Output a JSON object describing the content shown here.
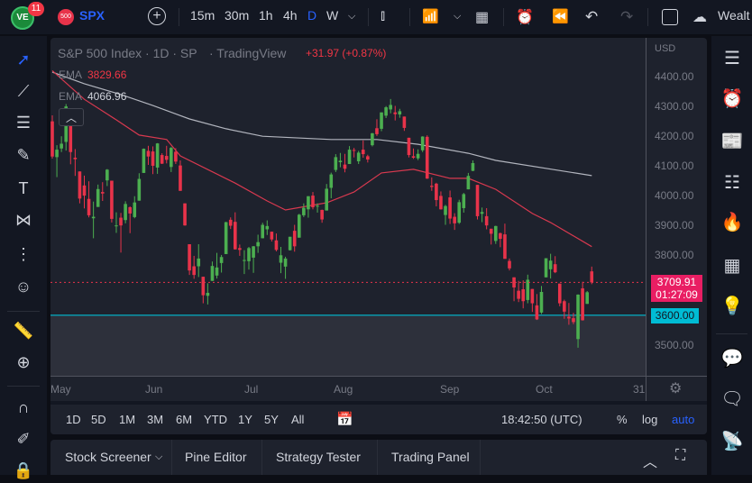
{
  "topbar": {
    "badge": "11",
    "symbol_badge": "500",
    "symbol": "SPX",
    "intervals": [
      "15m",
      "30m",
      "1h",
      "4h",
      "D",
      "W"
    ],
    "active_interval": "D",
    "workspace": "Wealt"
  },
  "legend": {
    "title": "S&P 500 Index · 1D · SP",
    "source": "· TradingView",
    "change": "+31.97 (+0.87%)",
    "ema1_label": "EMA",
    "ema1_value": "3829.66",
    "ema2_label": "EMA",
    "ema2_value": "4066.96"
  },
  "price_axis": {
    "currency": "USD",
    "ticks": [
      "4400.00",
      "4300.00",
      "4200.00",
      "4100.00",
      "4000.00",
      "3900.00",
      "3800.00",
      "3500.00"
    ],
    "last_price": "3709.91",
    "countdown": "01:27:09",
    "level_line": "3600.00"
  },
  "time_axis": [
    "May",
    "Jun",
    "Jul",
    "Aug",
    "Sep",
    "Oct",
    "31"
  ],
  "bottom_toolbar": {
    "ranges": [
      "1D",
      "5D",
      "1M",
      "3M",
      "6M",
      "YTD",
      "1Y",
      "5Y",
      "All"
    ],
    "clock": "18:42:50 (UTC)",
    "percent": "%",
    "log": "log",
    "auto": "auto"
  },
  "panel_tabs": [
    "Stock Screener",
    "Pine Editor",
    "Strategy Tester",
    "Trading Panel"
  ],
  "colors": {
    "up": "#4caf50",
    "down": "#e8334a",
    "ema_fast": "#d8394f",
    "ema_slow": "#b2b5be",
    "level": "#00bcd4",
    "accent": "#2962ff"
  },
  "chart_data": {
    "type": "candlestick",
    "ylim": [
      3450,
      4440
    ],
    "candles": [
      [
        "Apr 29",
        4250,
        4270,
        4125,
        4132
      ],
      [
        "May 2",
        4130,
        4170,
        4063,
        4155
      ],
      [
        "May 3",
        4159,
        4200,
        4147,
        4175
      ],
      [
        "May 4",
        4181,
        4308,
        4152,
        4300
      ],
      [
        "May 5",
        4270,
        4270,
        4106,
        4147
      ],
      [
        "May 6",
        4128,
        4157,
        4067,
        4123
      ],
      [
        "May 9",
        4082,
        4082,
        3975,
        3991
      ],
      [
        "May 10",
        4035,
        4068,
        3958,
        4001
      ],
      [
        "May 11",
        3990,
        4049,
        3928,
        3935
      ],
      [
        "May 12",
        3925,
        3981,
        3858,
        3930
      ],
      [
        "May 13",
        3963,
        4038,
        3963,
        4023
      ],
      [
        "May 16",
        4013,
        4046,
        3983,
        4008
      ],
      [
        "May 17",
        4052,
        4090,
        4033,
        4088
      ],
      [
        "May 18",
        4051,
        4051,
        3911,
        3923
      ],
      [
        "May 19",
        3900,
        3945,
        3876,
        3901
      ],
      [
        "May 20",
        3927,
        3943,
        3810,
        3901
      ],
      [
        "May 23",
        3919,
        3982,
        3908,
        3973
      ],
      [
        "May 24",
        3962,
        3965,
        3875,
        3941
      ],
      [
        "May 25",
        3929,
        3999,
        3925,
        3978
      ],
      [
        "May 26",
        3984,
        4076,
        3984,
        4057
      ],
      [
        "May 27",
        4077,
        4159,
        4077,
        4158
      ],
      [
        "May 31",
        4151,
        4168,
        4104,
        4132
      ],
      [
        "Jun 1",
        4149,
        4166,
        4073,
        4101
      ],
      [
        "Jun 2",
        4095,
        4177,
        4074,
        4176
      ],
      [
        "Jun 3",
        4137,
        4143,
        4107,
        4108
      ],
      [
        "Jun 6",
        4134,
        4168,
        4109,
        4121
      ],
      [
        "Jun 7",
        4097,
        4164,
        4080,
        4161
      ],
      [
        "Jun 8",
        4148,
        4160,
        4107,
        4115
      ],
      [
        "Jun 9",
        4102,
        4119,
        4017,
        4017
      ],
      [
        "Jun 10",
        3975,
        3975,
        3900,
        3901
      ],
      [
        "Jun 13",
        3838,
        3838,
        3735,
        3750
      ],
      [
        "Jun 14",
        3764,
        3799,
        3722,
        3735
      ],
      [
        "Jun 15",
        3764,
        3838,
        3728,
        3790
      ],
      [
        "Jun 16",
        3729,
        3729,
        3640,
        3667
      ],
      [
        "Jun 17",
        3665,
        3707,
        3636,
        3675
      ],
      [
        "Jun 21",
        3715,
        3780,
        3715,
        3765
      ],
      [
        "Jun 22",
        3733,
        3809,
        3723,
        3760
      ],
      [
        "Jun 23",
        3775,
        3802,
        3743,
        3795
      ],
      [
        "Jun 24",
        3805,
        3913,
        3805,
        3912
      ],
      [
        "Jun 27",
        3920,
        3928,
        3889,
        3900
      ],
      [
        "Jun 28",
        3913,
        3945,
        3820,
        3821
      ],
      [
        "Jun 29",
        3825,
        3837,
        3799,
        3819
      ],
      [
        "Jun 30",
        3785,
        3818,
        3738,
        3785
      ],
      [
        "Jul 1",
        3781,
        3829,
        3753,
        3825
      ],
      [
        "Jul 5",
        3793,
        3832,
        3742,
        3831
      ],
      [
        "Jul 6",
        3831,
        3870,
        3809,
        3845
      ],
      [
        "Jul 7",
        3858,
        3910,
        3858,
        3903
      ],
      [
        "Jul 8",
        3888,
        3918,
        3869,
        3899
      ],
      [
        "Jul 11",
        3880,
        3880,
        3847,
        3854
      ],
      [
        "Jul 12",
        3851,
        3874,
        3814,
        3819
      ],
      [
        "Jul 13",
        3776,
        3829,
        3741,
        3801
      ],
      [
        "Jul 14",
        3763,
        3796,
        3722,
        3790
      ],
      [
        "Jul 15",
        3818,
        3863,
        3817,
        3863
      ],
      [
        "Jul 18",
        3883,
        3903,
        3813,
        3831
      ],
      [
        "Jul 19",
        3860,
        3940,
        3860,
        3937
      ],
      [
        "Jul 20",
        3935,
        3975,
        3929,
        3960
      ],
      [
        "Jul 21",
        3955,
        3999,
        3927,
        3999
      ],
      [
        "Jul 22",
        4001,
        4013,
        3955,
        3962
      ],
      [
        "Jul 25",
        3965,
        3975,
        3944,
        3967
      ],
      [
        "Jul 26",
        3953,
        3954,
        3910,
        3921
      ],
      [
        "Jul 27",
        3951,
        4040,
        3951,
        4024
      ],
      [
        "Jul 28",
        4027,
        4078,
        3992,
        4072
      ],
      [
        "Jul 29",
        4087,
        4140,
        4080,
        4130
      ],
      [
        "Aug 1",
        4113,
        4144,
        4096,
        4118
      ],
      [
        "Aug 2",
        4105,
        4141,
        4079,
        4091
      ],
      [
        "Aug 3",
        4107,
        4167,
        4107,
        4155
      ],
      [
        "Aug 4",
        4154,
        4161,
        4129,
        4152
      ],
      [
        "Aug 5",
        4116,
        4151,
        4107,
        4145
      ],
      [
        "Aug 8",
        4155,
        4186,
        4128,
        4140
      ],
      [
        "Aug 9",
        4133,
        4138,
        4112,
        4122
      ],
      [
        "Aug 10",
        4170,
        4211,
        4166,
        4210
      ],
      [
        "Aug 11",
        4227,
        4257,
        4201,
        4207
      ],
      [
        "Aug 12",
        4225,
        4280,
        4217,
        4280
      ],
      [
        "Aug 15",
        4269,
        4301,
        4261,
        4297
      ],
      [
        "Aug 16",
        4290,
        4325,
        4277,
        4305
      ],
      [
        "Aug 17",
        4280,
        4302,
        4253,
        4274
      ],
      [
        "Aug 18",
        4273,
        4292,
        4262,
        4284
      ],
      [
        "Aug 19",
        4266,
        4266,
        4218,
        4228
      ],
      [
        "Aug 22",
        4195,
        4195,
        4129,
        4137
      ],
      [
        "Aug 23",
        4133,
        4159,
        4124,
        4128
      ],
      [
        "Aug 24",
        4126,
        4156,
        4120,
        4141
      ],
      [
        "Aug 25",
        4153,
        4200,
        4147,
        4199
      ],
      [
        "Aug 26",
        4198,
        4203,
        4057,
        4058
      ],
      [
        "Aug 29",
        4034,
        4062,
        4017,
        4030
      ],
      [
        "Aug 30",
        4041,
        4044,
        3965,
        3986
      ],
      [
        "Aug 31",
        4000,
        4015,
        3954,
        3955
      ],
      [
        "Sep 1",
        3936,
        3970,
        3903,
        3966
      ],
      [
        "Sep 2",
        3995,
        4018,
        3906,
        3924
      ],
      [
        "Sep 6",
        3930,
        3942,
        3886,
        3908
      ],
      [
        "Sep 7",
        3910,
        3987,
        3906,
        3979
      ],
      [
        "Sep 8",
        3959,
        4010,
        3944,
        4006
      ],
      [
        "Sep 9",
        4022,
        4077,
        4022,
        4067
      ],
      [
        "Sep 12",
        4084,
        4119,
        4083,
        4110
      ],
      [
        "Sep 13",
        4037,
        4037,
        3921,
        3932
      ],
      [
        "Sep 14",
        3940,
        3961,
        3912,
        3946
      ],
      [
        "Sep 15",
        3932,
        3959,
        3888,
        3901
      ],
      [
        "Sep 16",
        3890,
        3890,
        3837,
        3873
      ],
      [
        "Sep 19",
        3849,
        3900,
        3839,
        3899
      ],
      [
        "Sep 20",
        3875,
        3877,
        3828,
        3856
      ],
      [
        "Sep 21",
        3871,
        3907,
        3789,
        3789
      ],
      [
        "Sep 22",
        3782,
        3790,
        3750,
        3757
      ],
      [
        "Sep 23",
        3727,
        3727,
        3647,
        3693
      ],
      [
        "Sep 26",
        3682,
        3715,
        3644,
        3655
      ],
      [
        "Sep 27",
        3687,
        3717,
        3623,
        3647
      ],
      [
        "Sep 28",
        3651,
        3736,
        3640,
        3719
      ],
      [
        "Sep 29",
        3688,
        3688,
        3611,
        3640
      ],
      [
        "Sep 30",
        3633,
        3671,
        3584,
        3586
      ],
      [
        "Oct 3",
        3609,
        3698,
        3604,
        3678
      ],
      [
        "Oct 4",
        3727,
        3791,
        3727,
        3791
      ],
      [
        "Oct 5",
        3754,
        3806,
        3723,
        3783
      ],
      [
        "Oct 6",
        3771,
        3798,
        3741,
        3744
      ],
      [
        "Oct 7",
        3706,
        3706,
        3630,
        3640
      ],
      [
        "Oct 10",
        3647,
        3652,
        3588,
        3612
      ],
      [
        "Oct 11",
        3595,
        3641,
        3568,
        3589
      ],
      [
        "Oct 12",
        3590,
        3608,
        3570,
        3577
      ],
      [
        "Oct 13",
        3520,
        3670,
        3491,
        3669
      ],
      [
        "Oct 14",
        3690,
        3712,
        3582,
        3583
      ],
      [
        "Oct 17",
        3638,
        3681,
        3638,
        3677
      ],
      [
        "Oct 18",
        3747,
        3763,
        3704,
        3710
      ]
    ],
    "ema_fast": [
      [
        "Apr 29",
        4420
      ],
      [
        "May 10",
        4324
      ],
      [
        "May 19",
        4255
      ],
      [
        "May 26",
        4204
      ],
      [
        "Jun 6",
        4189
      ],
      [
        "Jun 9",
        4134
      ],
      [
        "Jun 28",
        4043
      ],
      [
        "Jul 8",
        3983
      ],
      [
        "Jul 14",
        3953
      ],
      [
        "Jul 27",
        3977
      ],
      [
        "Aug 4",
        4013
      ],
      [
        "Aug 12",
        4077
      ],
      [
        "Aug 23",
        4089
      ],
      [
        "Sep 2",
        4059
      ],
      [
        "Sep 9",
        4059
      ],
      [
        "Sep 19",
        4022
      ],
      [
        "Sep 29",
        3941
      ],
      [
        "Oct 5",
        3911
      ],
      [
        "Oct 18",
        3830
      ]
    ],
    "ema_slow": [
      [
        "Apr 29",
        4415
      ],
      [
        "May 10",
        4376
      ],
      [
        "May 20",
        4340
      ],
      [
        "Jun 1",
        4303
      ],
      [
        "Jun 13",
        4258
      ],
      [
        "Jun 24",
        4225
      ],
      [
        "Jul 7",
        4200
      ],
      [
        "Jul 28",
        4189
      ],
      [
        "Aug 11",
        4189
      ],
      [
        "Aug 24",
        4173
      ],
      [
        "Sep 9",
        4143
      ],
      [
        "Sep 19",
        4119
      ],
      [
        "Oct 18",
        4068
      ]
    ]
  }
}
